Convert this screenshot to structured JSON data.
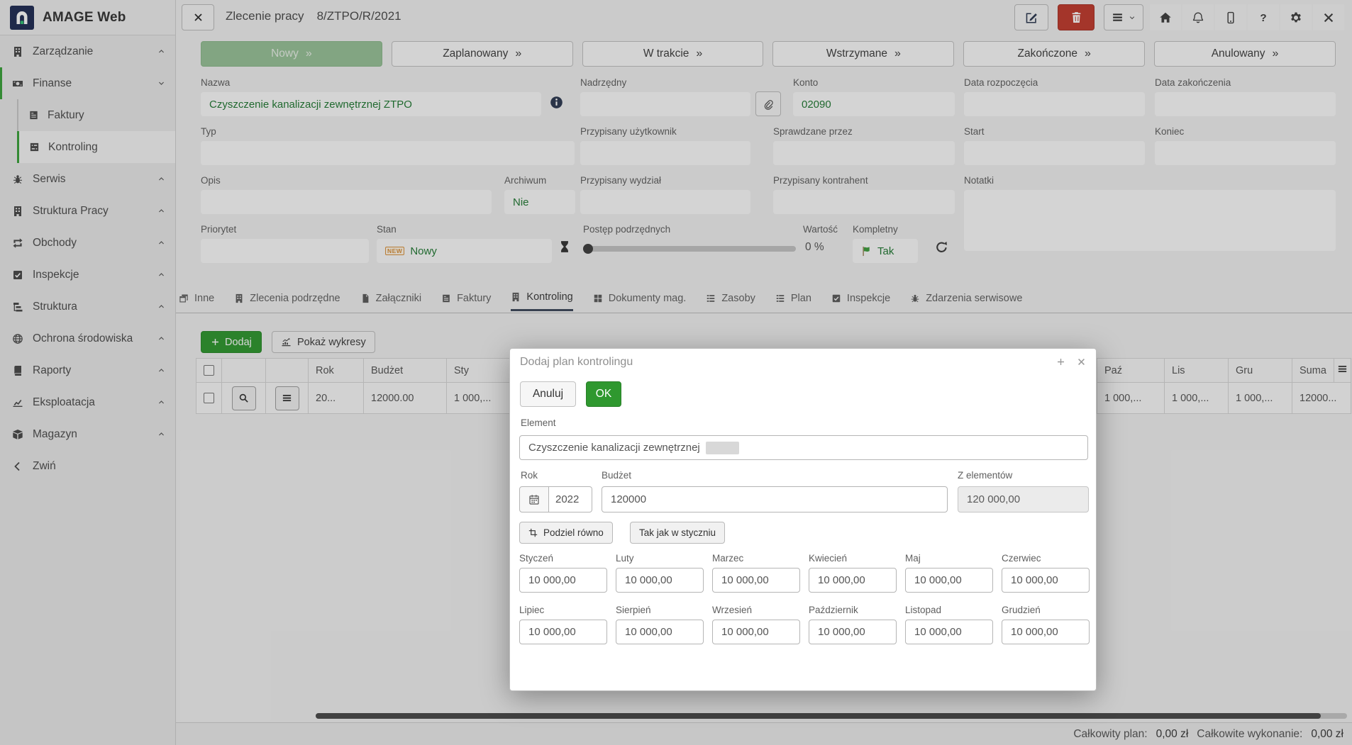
{
  "brand": {
    "name": "AMAGE Web"
  },
  "topbar": {
    "title": "Zlecenie pracy",
    "reference": "8/ZTPO/R/2021"
  },
  "sidebar": {
    "items": [
      {
        "label": "Zarządzanie",
        "icon": "building"
      },
      {
        "label": "Finanse",
        "icon": "banknote"
      },
      {
        "label": "Faktury",
        "icon": "invoice"
      },
      {
        "label": "Kontroling",
        "icon": "abacus"
      },
      {
        "label": "Serwis",
        "icon": "bug"
      },
      {
        "label": "Struktura Pracy",
        "icon": "building"
      },
      {
        "label": "Obchody",
        "icon": "repeat"
      },
      {
        "label": "Inspekcje",
        "icon": "checkbox"
      },
      {
        "label": "Struktura",
        "icon": "sitemap"
      },
      {
        "label": "Ochrona środowiska",
        "icon": "globe"
      },
      {
        "label": "Raporty",
        "icon": "book"
      },
      {
        "label": "Eksploatacja",
        "icon": "chartflow"
      },
      {
        "label": "Magazyn",
        "icon": "box"
      }
    ],
    "collapse": "Zwiń"
  },
  "statuses": {
    "items": [
      "Nowy",
      "Zaplanowany",
      "W trakcie",
      "Wstrzymane",
      "Zakończone",
      "Anulowany"
    ],
    "arrow": "»"
  },
  "form": {
    "nazwa": {
      "label": "Nazwa",
      "value": "Czyszczenie kanalizacji zewnętrznej ZTPO"
    },
    "nadrzedny": {
      "label": "Nadrzędny",
      "value": ""
    },
    "konto": {
      "label": "Konto",
      "value": "02090"
    },
    "data_rozpoczecia": {
      "label": "Data rozpoczęcia",
      "value": ""
    },
    "data_zakonczenia": {
      "label": "Data zakończenia",
      "value": ""
    },
    "typ": {
      "label": "Typ",
      "value": ""
    },
    "przypisany_uzytkownik": {
      "label": "Przypisany użytkownik",
      "value": ""
    },
    "sprawdzane_przez": {
      "label": "Sprawdzane przez",
      "value": ""
    },
    "start": {
      "label": "Start",
      "value": ""
    },
    "koniec": {
      "label": "Koniec",
      "value": ""
    },
    "opis": {
      "label": "Opis",
      "value": ""
    },
    "archiwum": {
      "label": "Archiwum",
      "value": "Nie"
    },
    "przypisany_wydzial": {
      "label": "Przypisany wydział",
      "value": ""
    },
    "przypisany_kontrahent": {
      "label": "Przypisany kontrahent",
      "value": ""
    },
    "notatki": {
      "label": "Notatki",
      "value": ""
    },
    "priorytet": {
      "label": "Priorytet",
      "value": ""
    },
    "stan": {
      "label": "Stan",
      "badge": "NEW",
      "value": "Nowy"
    },
    "postep": {
      "label": "Postęp podrzędnych",
      "value": "0 %"
    },
    "wartosc": {
      "label": "Wartość"
    },
    "kompletny": {
      "label": "Kompletny",
      "value": "Tak"
    }
  },
  "tabs": [
    {
      "label": "Inne",
      "icon": "window"
    },
    {
      "label": "Zlecenia podrzędne",
      "icon": "building"
    },
    {
      "label": "Załączniki",
      "icon": "file"
    },
    {
      "label": "Faktury",
      "icon": "invoice"
    },
    {
      "label": "Kontroling",
      "icon": "building"
    },
    {
      "label": "Dokumenty mag.",
      "icon": "grid"
    },
    {
      "label": "Zasoby",
      "icon": "rows"
    },
    {
      "label": "Plan",
      "icon": "rows"
    },
    {
      "label": "Inspekcje",
      "icon": "checkbox"
    },
    {
      "label": "Zdarzenia serwisowe",
      "icon": "bug"
    }
  ],
  "toolbar": {
    "add": "Dodaj",
    "show_charts": "Pokaż wykresy"
  },
  "table": {
    "headers": {
      "rok": "Rok",
      "budzet": "Budżet",
      "sty": "Sty",
      "paz": "Paź",
      "lis": "Lis",
      "gru": "Gru",
      "suma": "Suma"
    },
    "row": {
      "rok": "20...",
      "budzet": "12000.00",
      "sty": "1 000,...",
      "paz": "1 000,...",
      "lis": "1 000,...",
      "gru": "1 000,...",
      "suma": "12000..."
    }
  },
  "footer": {
    "total_plan_label": "Całkowity plan:",
    "total_plan_value": "0,00 zł",
    "total_exec_label": "Całkowite wykonanie:",
    "total_exec_value": "0,00 zł"
  },
  "modal": {
    "title": "Dodaj plan kontrolingu",
    "cancel": "Anuluj",
    "ok": "OK",
    "element": {
      "label": "Element",
      "value": "Czyszczenie kanalizacji zewnętrznej"
    },
    "rok": {
      "label": "Rok",
      "value": "2022"
    },
    "budzet": {
      "label": "Budżet",
      "value": "120000"
    },
    "z_elementow": {
      "label": "Z elementów",
      "value": "120 000,00"
    },
    "divide_equal": "Podziel równo",
    "like_january": "Tak jak w styczniu",
    "months": [
      {
        "label": "Styczeń",
        "value": "10 000,00"
      },
      {
        "label": "Luty",
        "value": "10 000,00"
      },
      {
        "label": "Marzec",
        "value": "10 000,00"
      },
      {
        "label": "Kwiecień",
        "value": "10 000,00"
      },
      {
        "label": "Maj",
        "value": "10 000,00"
      },
      {
        "label": "Czerwiec",
        "value": "10 000,00"
      },
      {
        "label": "Lipiec",
        "value": "10 000,00"
      },
      {
        "label": "Sierpień",
        "value": "10 000,00"
      },
      {
        "label": "Wrzesień",
        "value": "10 000,00"
      },
      {
        "label": "Październik",
        "value": "10 000,00"
      },
      {
        "label": "Listopad",
        "value": "10 000,00"
      },
      {
        "label": "Grudzień",
        "value": "10 000,00"
      }
    ]
  },
  "colors": {
    "accent_green": "#2f982f",
    "value_green": "#217a33",
    "status_new_bg": "#98c398",
    "danger_red": "#c13b2e",
    "logo_navy": "#202c54",
    "tab_underline": "#3e4a5c"
  }
}
